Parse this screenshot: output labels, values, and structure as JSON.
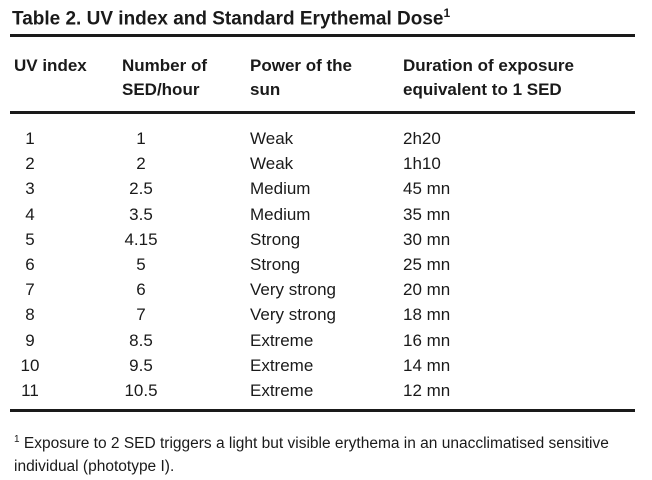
{
  "title": "Table 2. UV index and Standard Erythemal Dose",
  "title_note": "1",
  "table": {
    "headers": [
      "UV index",
      "Number of SED/hour",
      "Power of the sun",
      "Duration of exposure equivalent to 1 SED"
    ],
    "rows": [
      [
        "1",
        "1",
        "Weak",
        "2h20"
      ],
      [
        "2",
        "2",
        "Weak",
        "1h10"
      ],
      [
        "3",
        "2.5",
        "Medium",
        "45 mn"
      ],
      [
        "4",
        "3.5",
        "Medium",
        "35 mn"
      ],
      [
        "5",
        "4.15",
        "Strong",
        "30 mn"
      ],
      [
        "6",
        "5",
        "Strong",
        "25 mn"
      ],
      [
        "7",
        "6",
        "Very strong",
        "20 mn"
      ],
      [
        "8",
        "7",
        "Very strong",
        "18 mn"
      ],
      [
        "9",
        "8.5",
        "Extreme",
        "16 mn"
      ],
      [
        "10",
        "9.5",
        "Extreme",
        "14 mn"
      ],
      [
        "11",
        "10.5",
        "Extreme",
        "12 mn"
      ]
    ]
  },
  "footnote": {
    "marker": "1",
    "text": "Exposure to 2 SED triggers a light but visible erythema in an unacclimatised sensitive individual (phototype I)."
  }
}
